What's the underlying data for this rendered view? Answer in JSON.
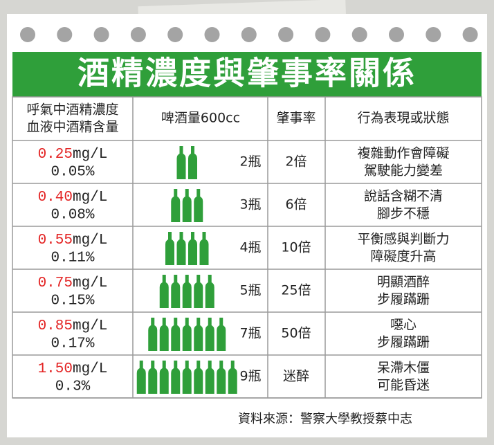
{
  "title": "酒精濃度與肇事率關係",
  "header": {
    "col0": [
      "呼氣中酒精濃度",
      "血液中酒精含量"
    ],
    "col1": "啤酒量600cc",
    "col2": "肇事率",
    "col3": "行為表現或狀態"
  },
  "rows": [
    {
      "breath": "0.25",
      "breath_unit": "mg/L",
      "blood": "0.05%",
      "bottles": 2,
      "bottle_label": "2瓶",
      "accident_rate": "2倍",
      "behavior": [
        "複雜動作會障礙",
        "駕駛能力變差"
      ]
    },
    {
      "breath": "0.40",
      "breath_unit": "mg/L",
      "blood": "0.08%",
      "bottles": 3,
      "bottle_label": "3瓶",
      "accident_rate": "6倍",
      "behavior": [
        "說話含糊不清",
        "腳步不穩"
      ]
    },
    {
      "breath": "0.55",
      "breath_unit": "mg/L",
      "blood": "0.11%",
      "bottles": 4,
      "bottle_label": "4瓶",
      "accident_rate": "10倍",
      "behavior": [
        "平衡感與判斷力",
        "障礙度升高"
      ]
    },
    {
      "breath": "0.75",
      "breath_unit": "mg/L",
      "blood": "0.15%",
      "bottles": 5,
      "bottle_label": "5瓶",
      "accident_rate": "25倍",
      "behavior": [
        "明顯酒醉",
        "步履蹣跚"
      ]
    },
    {
      "breath": "0.85",
      "breath_unit": "mg/L",
      "blood": "0.17%",
      "bottles": 7,
      "bottle_label": "7瓶",
      "accident_rate": "50倍",
      "behavior": [
        "噁心",
        "步履蹣跚"
      ]
    },
    {
      "breath": "1.50",
      "breath_unit": "mg/L",
      "blood": "0.3%",
      "bottles": 9,
      "bottle_label": "9瓶",
      "accident_rate": "迷醉",
      "behavior": [
        "呆滯木僵",
        "可能昏迷"
      ]
    }
  ],
  "source": "資料來源：警察大學教授蔡中志"
}
